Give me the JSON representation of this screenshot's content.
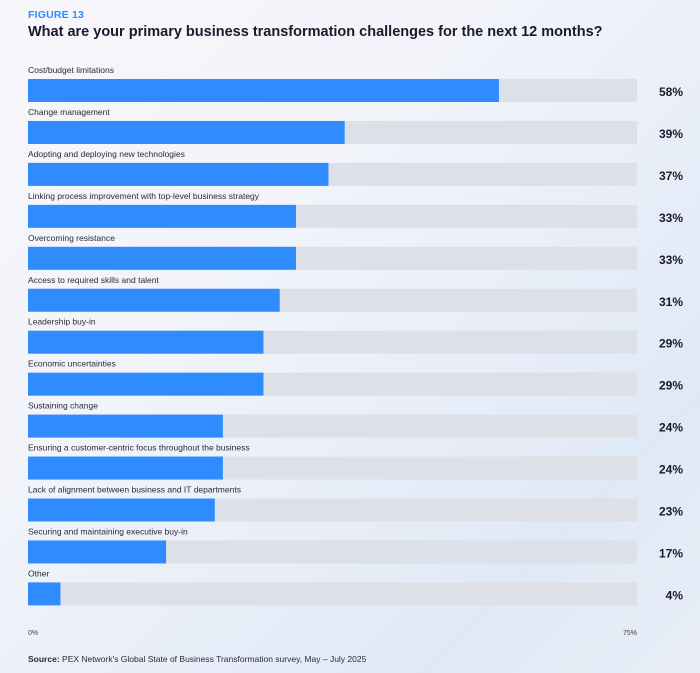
{
  "figure_label": "FIGURE 13",
  "source_prefix": "Source:",
  "source_text": "PEX Network's Global State of Business Transformation survey, May – July 2025",
  "colors": {
    "bar": "#2f8cff",
    "track": "#dde0e6",
    "label": "#2f8cff"
  },
  "chart_data": {
    "type": "bar",
    "orientation": "horizontal",
    "title": "What are your primary business transformation challenges for the next 12 months?",
    "categories": [
      "Cost/budget limitations",
      "Change management",
      "Adopting and deploying new technologies",
      "Linking process improvement with top-level business strategy",
      "Overcoming resistance",
      "Access to required skills and talent",
      "Leadership buy-in",
      "Economic uncertainties",
      "Sustaining change",
      "Ensuring a customer-centric focus throughout the business",
      "Lack of alignment between business and IT departments",
      "Securing and maintaining executive buy-in",
      "Other"
    ],
    "values": [
      58,
      39,
      37,
      33,
      33,
      31,
      29,
      29,
      24,
      24,
      23,
      17,
      4
    ],
    "value_labels": [
      "58%",
      "39%",
      "37%",
      "33%",
      "33%",
      "31%",
      "29%",
      "29%",
      "24%",
      "24%",
      "23%",
      "17%",
      "4%"
    ],
    "xlim": [
      0,
      75
    ],
    "axis_tick_labels": [
      "0%",
      "75%"
    ],
    "xlabel": "",
    "ylabel": ""
  }
}
